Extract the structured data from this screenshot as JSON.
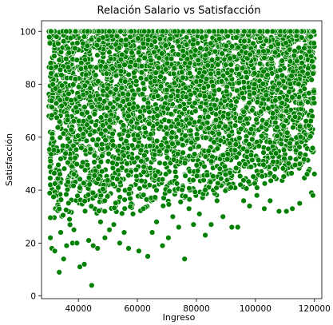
{
  "chart_data": {
    "type": "scatter",
    "title": "Relación Salario vs Satisfacción",
    "xlabel": "Ingreso",
    "ylabel": "Satisfacción",
    "xlim": [
      27500,
      122500
    ],
    "ylim": [
      -1,
      104
    ],
    "xticks": [
      40000,
      60000,
      80000,
      100000,
      120000
    ],
    "yticks": [
      0,
      20,
      40,
      60,
      80,
      100
    ],
    "grid": false,
    "legend": "none",
    "marker_color": "#008000",
    "marker_edge_color": "#ffffff",
    "density_note_series": {
      "x_range": [
        30000,
        120000
      ],
      "y_range": [
        0,
        100
      ],
      "dense_band_y_min": 40,
      "dense_band_y_top": 100
    },
    "points": [
      [
        30500,
        22
      ],
      [
        31000,
        18
      ],
      [
        32000,
        17
      ],
      [
        33500,
        9
      ],
      [
        34000,
        24
      ],
      [
        35000,
        14
      ],
      [
        36000,
        19
      ],
      [
        37000,
        29
      ],
      [
        38000,
        20
      ],
      [
        38500,
        25
      ],
      [
        39500,
        20
      ],
      [
        40500,
        11
      ],
      [
        42000,
        12
      ],
      [
        43500,
        21
      ],
      [
        44500,
        4
      ],
      [
        45000,
        19
      ],
      [
        46500,
        18
      ],
      [
        47500,
        28
      ],
      [
        49000,
        22
      ],
      [
        50500,
        25
      ],
      [
        52000,
        27
      ],
      [
        54000,
        20
      ],
      [
        55500,
        24
      ],
      [
        57000,
        18
      ],
      [
        58500,
        31
      ],
      [
        60500,
        17
      ],
      [
        62000,
        33
      ],
      [
        63500,
        15
      ],
      [
        65000,
        24
      ],
      [
        66500,
        28
      ],
      [
        68500,
        19
      ],
      [
        70500,
        22
      ],
      [
        72000,
        30
      ],
      [
        74000,
        26
      ],
      [
        76000,
        14
      ],
      [
        77500,
        33
      ],
      [
        79000,
        27
      ],
      [
        81000,
        31
      ],
      [
        83000,
        23
      ],
      [
        85000,
        27
      ],
      [
        87000,
        36
      ],
      [
        89000,
        30
      ],
      [
        92000,
        26
      ],
      [
        94000,
        26
      ],
      [
        96000,
        36
      ],
      [
        98000,
        34
      ],
      [
        100500,
        38
      ],
      [
        103000,
        33
      ],
      [
        105000,
        36
      ],
      [
        108000,
        32
      ],
      [
        110500,
        32
      ],
      [
        112500,
        33
      ],
      [
        115000,
        35
      ],
      [
        117500,
        46
      ],
      [
        119000,
        39
      ],
      [
        119500,
        38
      ]
    ]
  }
}
